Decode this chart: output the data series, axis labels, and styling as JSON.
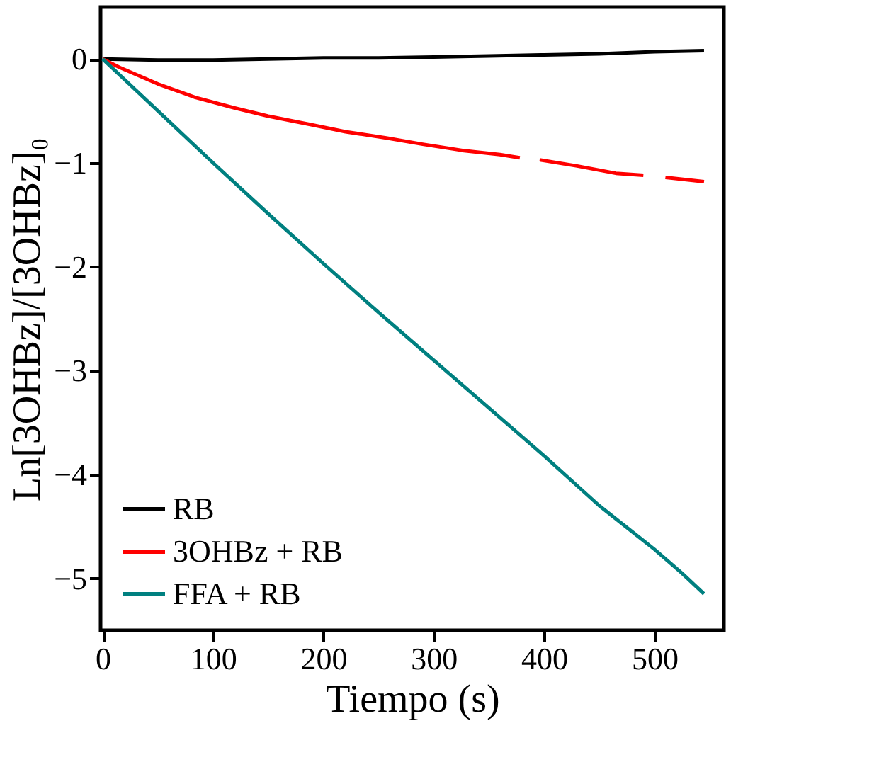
{
  "chart_data": {
    "type": "line",
    "xlabel": "Tiempo (s)",
    "ylabel": "Ln[3OHBz]/[3OHBz]₀",
    "xlim": [
      -2,
      563
    ],
    "ylim": [
      -5.5,
      0.5
    ],
    "xticks": [
      0,
      100,
      200,
      300,
      400,
      500
    ],
    "yticks": [
      0,
      -1,
      -2,
      -3,
      -4,
      -5
    ],
    "grid": false,
    "legend": "bottom left",
    "marker": "none",
    "line_style": "solid",
    "series": [
      {
        "name": "RB",
        "color": "#000000",
        "x": [
          0,
          50,
          100,
          150,
          200,
          250,
          300,
          350,
          400,
          450,
          500,
          545
        ],
        "values": [
          0,
          -0.01,
          -0.01,
          0,
          0.01,
          0.01,
          0.02,
          0.03,
          0.04,
          0.05,
          0.07,
          0.08
        ]
      },
      {
        "name": "3OHBz + RB",
        "color": "#ff0000",
        "x": [
          0,
          15,
          50,
          84,
          119,
          150,
          188,
          220,
          257,
          290,
          326,
          360,
          378,
          388,
          396,
          430,
          465,
          490,
          500,
          510,
          545
        ],
        "values": [
          0,
          -0.08,
          -0.24,
          -0.37,
          -0.47,
          -0.55,
          -0.63,
          -0.7,
          -0.76,
          -0.82,
          -0.88,
          -0.92,
          -0.95,
          null,
          -0.97,
          -1.03,
          -1.1,
          -1.12,
          null,
          -1.14,
          -1.18
        ]
      },
      {
        "name": "FFA + RB",
        "color": "#008080",
        "x": [
          0,
          25,
          50,
          100,
          150,
          200,
          250,
          300,
          350,
          400,
          450,
          500,
          525,
          545
        ],
        "values": [
          0,
          -0.25,
          -0.5,
          -1.0,
          -1.49,
          -1.97,
          -2.44,
          -2.9,
          -3.36,
          -3.82,
          -4.3,
          -4.72,
          -4.95,
          -5.15
        ]
      }
    ]
  }
}
